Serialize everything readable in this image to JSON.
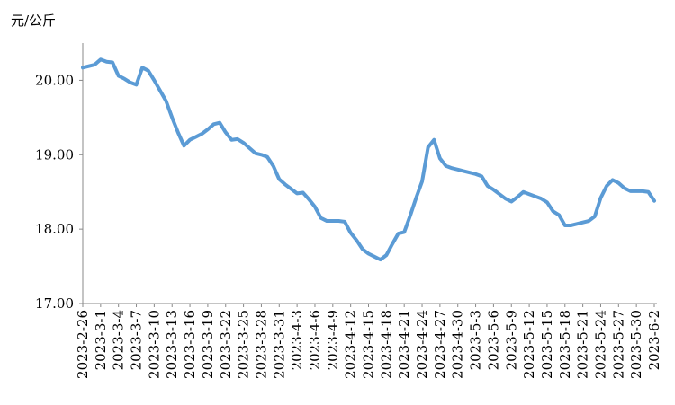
{
  "chart_data": {
    "type": "line",
    "y_label": "元/公斤",
    "categories": [
      "2023-2-26",
      null,
      null,
      "2023-3-1",
      null,
      null,
      "2023-3-4",
      null,
      null,
      "2023-3-7",
      null,
      null,
      "2023-3-10",
      null,
      null,
      "2023-3-13",
      null,
      null,
      "2023-3-16",
      null,
      null,
      "2023-3-19",
      null,
      null,
      "2023-3-22",
      null,
      null,
      "2023-3-25",
      null,
      null,
      "2023-3-28",
      null,
      null,
      "2023-3-31",
      null,
      null,
      "2023-4-3",
      null,
      null,
      "2023-4-6",
      null,
      null,
      "2023-4-9",
      null,
      null,
      "2023-4-12",
      null,
      null,
      "2023-4-15",
      null,
      null,
      "2023-4-18",
      null,
      null,
      "2023-4-21",
      null,
      null,
      "2023-4-24",
      null,
      null,
      "2023-4-27",
      null,
      null,
      "2023-4-30",
      null,
      null,
      "2023-5-3",
      null,
      null,
      "2023-5-6",
      null,
      null,
      "2023-5-9",
      null,
      null,
      "2023-5-12",
      null,
      null,
      "2023-5-15",
      null,
      null,
      "2023-5-18",
      null,
      null,
      "2023-5-21",
      null,
      null,
      "2023-5-24",
      null,
      null,
      "2023-5-27",
      null,
      null,
      "2023-5-30",
      null,
      null,
      "2023-6-2"
    ],
    "values": [
      20.17,
      20.19,
      20.21,
      20.28,
      20.25,
      20.24,
      20.06,
      20.02,
      19.97,
      19.94,
      20.17,
      20.13,
      20.0,
      19.86,
      19.72,
      19.5,
      19.3,
      19.12,
      19.2,
      19.24,
      19.28,
      19.34,
      19.41,
      19.43,
      19.3,
      19.2,
      19.21,
      19.16,
      19.09,
      19.02,
      19.0,
      18.97,
      18.85,
      18.67,
      18.6,
      18.54,
      18.48,
      18.49,
      18.4,
      18.3,
      18.15,
      18.11,
      18.11,
      18.11,
      18.1,
      17.95,
      17.85,
      17.73,
      17.67,
      17.63,
      17.59,
      17.65,
      17.8,
      17.94,
      17.96,
      18.18,
      18.42,
      18.64,
      19.1,
      19.2,
      18.95,
      18.85,
      18.82,
      18.8,
      18.78,
      18.76,
      18.74,
      18.71,
      18.58,
      18.53,
      18.47,
      18.41,
      18.37,
      18.43,
      18.5,
      18.47,
      18.44,
      18.41,
      18.36,
      18.24,
      18.19,
      18.05,
      18.05,
      18.07,
      18.09,
      18.11,
      18.17,
      18.42,
      18.58,
      18.66,
      18.62,
      18.55,
      18.51,
      18.51,
      18.51,
      18.5,
      18.38
    ],
    "color": "#5b9bd5",
    "ylim": [
      17,
      20.5
    ],
    "yticks": [
      {
        "value": 17,
        "label": "17.00"
      },
      {
        "value": 18,
        "label": "18.00"
      },
      {
        "value": 19,
        "label": "19.00"
      },
      {
        "value": 20,
        "label": "20.00"
      }
    ],
    "grid": false
  }
}
